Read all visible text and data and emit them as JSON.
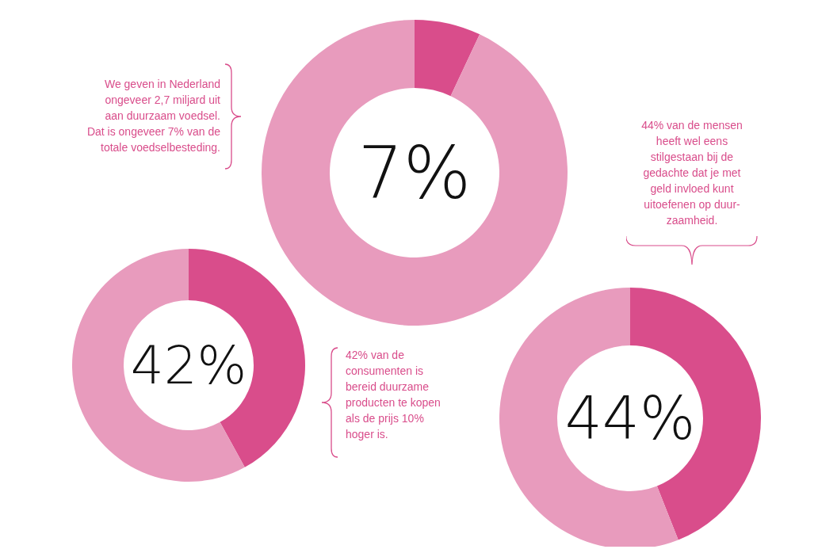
{
  "chart_data": [
    {
      "type": "donut",
      "title": "7%",
      "categories": [
        null,
        null
      ],
      "values": [
        7,
        93
      ],
      "colors": [
        "#d94d8b",
        "#e89bbd"
      ],
      "annotations": [
        "We geven in Nederland\nongeveer 2,7 miljard uit\naan duurzaam voedsel.\nDat is ongeveer 7% van de\ntotale voedselbesteding."
      ]
    },
    {
      "type": "donut",
      "title": "42%",
      "categories": [
        null,
        null
      ],
      "values": [
        42,
        58
      ],
      "colors": [
        "#d94d8b",
        "#e89bbd"
      ],
      "annotations": [
        "42% van de\nconsumenten is\nbereid duurzame\nproducten te kopen\nals de prijs 10%\nhoger is."
      ]
    },
    {
      "type": "donut",
      "title": "44%",
      "categories": [
        null,
        null
      ],
      "values": [
        44,
        56
      ],
      "colors": [
        "#d94d8b",
        "#e89bbd"
      ],
      "annotations": [
        "44% van de mensen\nheeft wel eens\nstilgestaan bij de\ngedachte dat je met\ngeld invloed kunt\nuitoefenen op duur-\nzaamheid."
      ]
    }
  ]
}
